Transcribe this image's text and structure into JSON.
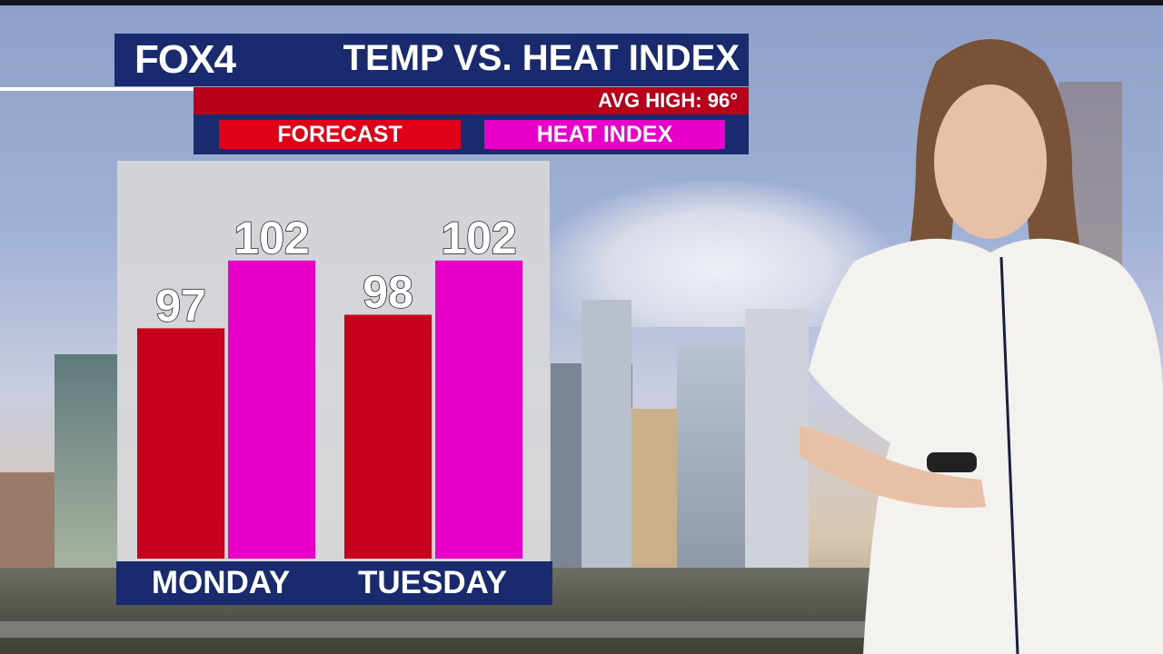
{
  "broadcast": {
    "logo": "FOX4",
    "title": "TEMP VS. HEAT INDEX",
    "avg_high": "AVG HIGH: 96°"
  },
  "legend": {
    "forecast_label": "FORECAST",
    "heat_index_label": "HEAT INDEX"
  },
  "colors": {
    "navy": "#1a2a6e",
    "forecast": "#c8001c",
    "heat_index": "#e800c8",
    "avg_bar": "#b8001a"
  },
  "chart_data": {
    "type": "bar",
    "categories": [
      "MONDAY",
      "TUESDAY"
    ],
    "series": [
      {
        "name": "FORECAST",
        "values": [
          97,
          98
        ]
      },
      {
        "name": "HEAT INDEX",
        "values": [
          102,
          102
        ]
      }
    ],
    "ylim": [
      80,
      104
    ]
  }
}
